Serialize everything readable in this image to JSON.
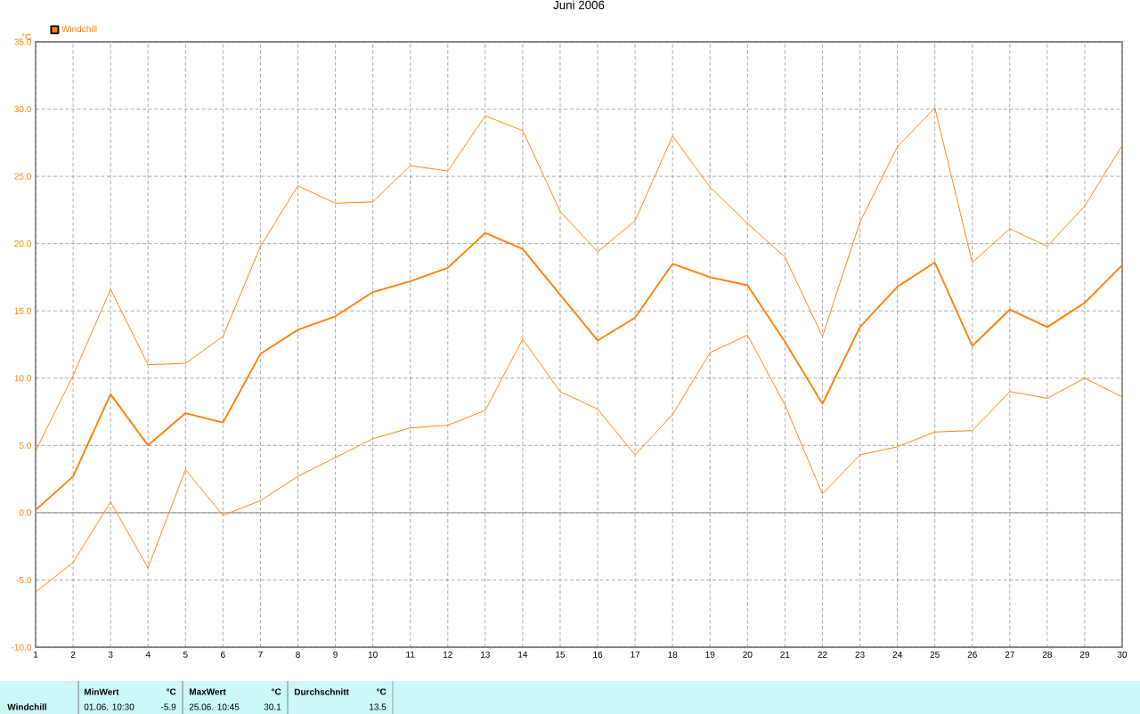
{
  "chart_data": {
    "type": "line",
    "title": "Juni 2006",
    "ylabel": "°C",
    "x": [
      1,
      2,
      3,
      4,
      5,
      6,
      7,
      8,
      9,
      10,
      11,
      12,
      13,
      14,
      15,
      16,
      17,
      18,
      19,
      20,
      21,
      22,
      23,
      24,
      25,
      26,
      27,
      28,
      29,
      30
    ],
    "series": [
      {
        "color": "#ff8000",
        "values": [
          4.6,
          10.2,
          16.6,
          11.0,
          11.1,
          13.1,
          19.8,
          24.3,
          23.0,
          23.1,
          25.8,
          25.4,
          29.5,
          28.4,
          22.4,
          19.4,
          21.7,
          28.0,
          24.2,
          21.5,
          19.0,
          13.1,
          21.6,
          27.2,
          30.1,
          18.6,
          21.1,
          19.8,
          22.8,
          27.3
        ]
      },
      {
        "name": "Windchill",
        "color": "#ff8000",
        "values": [
          0.2,
          2.7,
          8.8,
          5.0,
          7.4,
          6.7,
          11.8,
          13.6,
          14.6,
          16.4,
          17.2,
          18.2,
          20.8,
          19.6,
          16.2,
          12.8,
          14.5,
          18.5,
          17.5,
          16.9,
          12.7,
          8.1,
          13.8,
          16.8,
          18.6,
          12.4,
          15.1,
          13.8,
          15.6,
          18.4
        ]
      },
      {
        "color": "#ff8000",
        "values": [
          -5.9,
          -3.7,
          0.8,
          -4.1,
          3.2,
          -0.2,
          0.9,
          2.7,
          4.1,
          5.5,
          6.3,
          6.5,
          7.6,
          12.9,
          9.0,
          7.7,
          4.3,
          7.3,
          11.9,
          13.2,
          8.0,
          1.4,
          4.3,
          4.9,
          6.0,
          6.1,
          9.0,
          8.5,
          10.0,
          8.6
        ]
      }
    ],
    "xlim": [
      1,
      30
    ],
    "xticks": [
      1,
      2,
      3,
      4,
      5,
      6,
      7,
      8,
      9,
      10,
      11,
      12,
      13,
      14,
      15,
      16,
      17,
      18,
      19,
      20,
      21,
      22,
      23,
      24,
      25,
      26,
      27,
      28,
      29,
      30
    ],
    "ylim": [
      -10,
      35
    ],
    "yticks": [
      {
        "value": -10,
        "label": "-10.0"
      },
      {
        "value": -5,
        "label": "-5.0"
      },
      {
        "value": 0,
        "label": "0.0"
      },
      {
        "value": 5,
        "label": "5.0"
      },
      {
        "value": 10,
        "label": "10.0"
      },
      {
        "value": 15,
        "label": "15.0"
      },
      {
        "value": 20,
        "label": "20.0"
      },
      {
        "value": 25,
        "label": "25.0"
      },
      {
        "value": 30,
        "label": "30.0"
      },
      {
        "value": 35,
        "label": "35.0"
      }
    ],
    "ref_lines": [
      {
        "axis": "y",
        "value": 0,
        "color": "#a0a0a0"
      }
    ],
    "grid": true,
    "legend": "top left",
    "marker": "none",
    "line_style": "solid",
    "annotations": [
      "Windchill",
      "MinWert",
      "°C",
      "01.06.  10:30",
      "-5.9",
      "MaxWert",
      "°C",
      "25.06.  10:45",
      "30.1",
      "Durchschnitt",
      "°C",
      "13.5"
    ]
  }
}
